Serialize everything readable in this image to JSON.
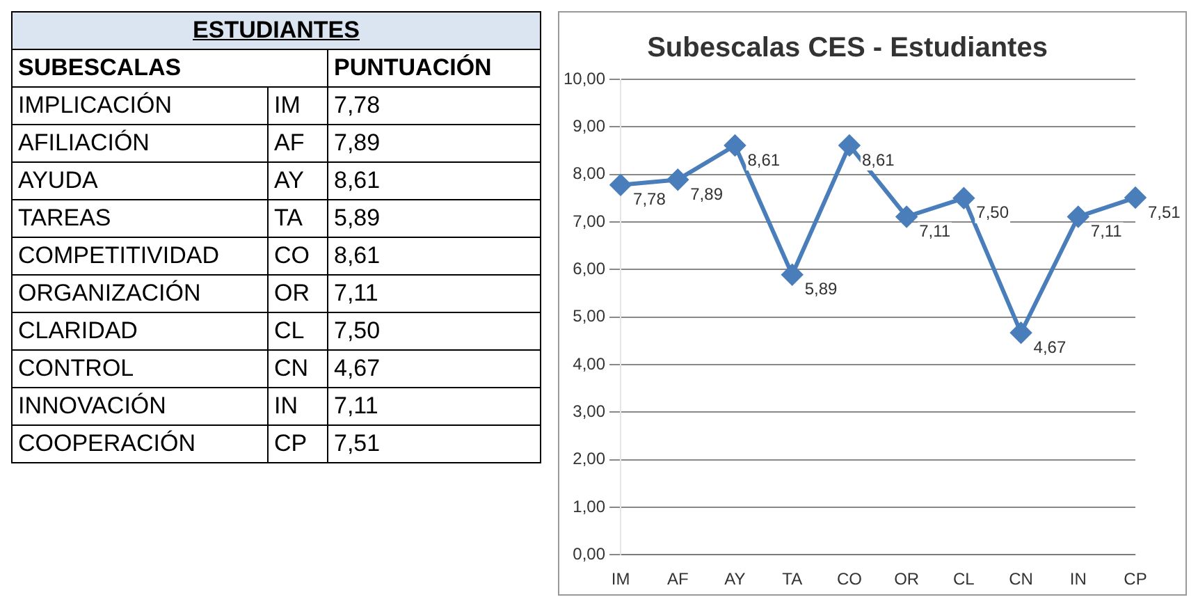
{
  "chart_data": [
    {
      "type": "other",
      "title": "ESTUDIANTES",
      "xlabel": "SUBESCALAS",
      "ylabel": "PUNTUACIÓN",
      "categories": [
        "IMPLICACIÓN",
        "AFILIACIÓN",
        "AYUDA",
        "TAREAS",
        "COMPETITIVIDAD",
        "ORGANIZACIÓN",
        "CLARIDAD",
        "CONTROL",
        "INNOVACIÓN",
        "COOPERACIÓN"
      ],
      "y2_categories": [
        "IM",
        "AF",
        "AY",
        "TA",
        "CO",
        "OR",
        "CL",
        "CN",
        "IN",
        "CP"
      ],
      "value_labels": [
        "7,78",
        "7,89",
        "8,61",
        "5,89",
        "8,61",
        "7,11",
        "7,50",
        "4,67",
        "7,11",
        "7,51"
      ]
    },
    {
      "type": "line",
      "title": "Subescalas CES - Estudiantes",
      "categories": [
        "IM",
        "AF",
        "AY",
        "TA",
        "CO",
        "OR",
        "CL",
        "CN",
        "IN",
        "CP"
      ],
      "series": [
        {
          "color": "#4a7ebb",
          "values": [
            7.78,
            7.89,
            8.61,
            5.89,
            8.61,
            7.11,
            7.5,
            4.67,
            7.11,
            7.51
          ]
        }
      ],
      "value_labels": [
        "7,78",
        "7,89",
        "8,61",
        "5,89",
        "8,61",
        "7,11",
        "7,50",
        "4,67",
        "7,11",
        "7,51"
      ],
      "ylim": [
        0,
        10
      ],
      "yticks": [
        {
          "value": 0,
          "label": "0,00"
        },
        {
          "value": 1,
          "label": "1,00"
        },
        {
          "value": 2,
          "label": "2,00"
        },
        {
          "value": 3,
          "label": "3,00"
        },
        {
          "value": 4,
          "label": "4,00"
        },
        {
          "value": 5,
          "label": "5,00"
        },
        {
          "value": 6,
          "label": "6,00"
        },
        {
          "value": 7,
          "label": "7,00"
        },
        {
          "value": 8,
          "label": "8,00"
        },
        {
          "value": 9,
          "label": "9,00"
        },
        {
          "value": 10,
          "label": "10,00"
        }
      ],
      "grid": "y",
      "legend": false,
      "marker": "diamond",
      "line_style": "solid"
    }
  ]
}
